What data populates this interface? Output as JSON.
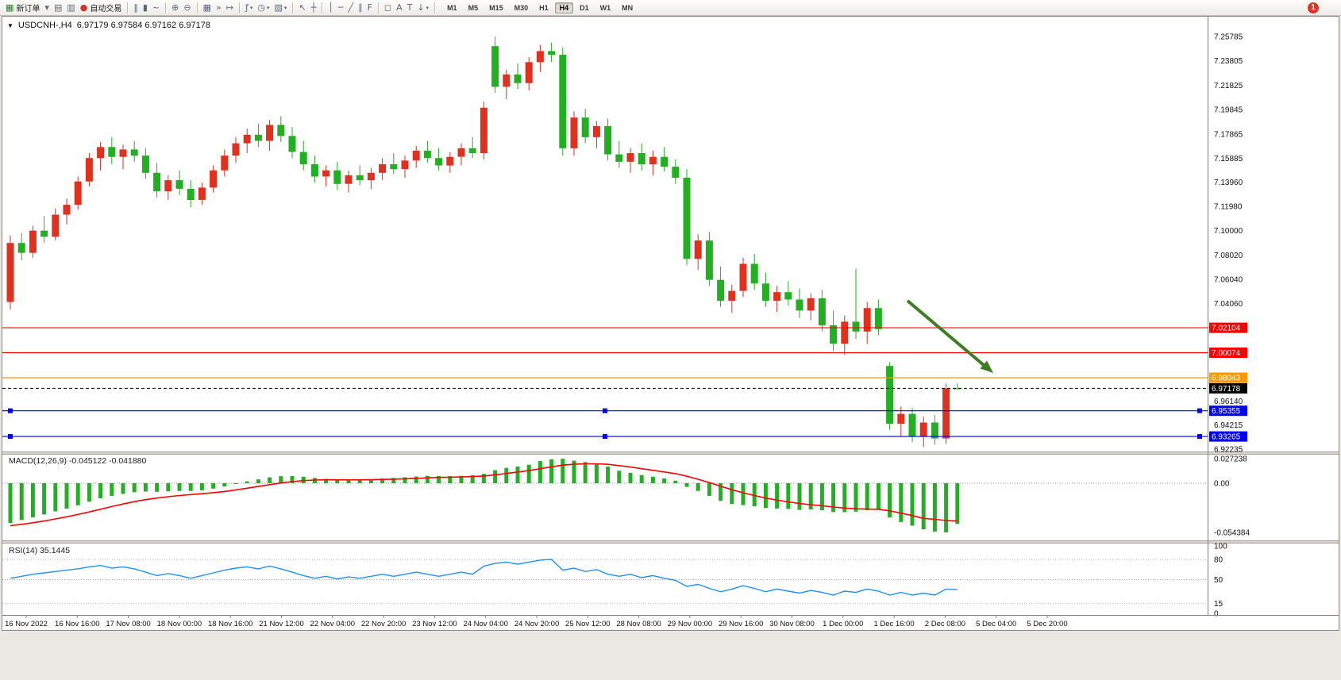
{
  "toolbar": {
    "dropdown_glyph": "▾",
    "notification_badge": "1",
    "timeframes": [
      "M1",
      "M5",
      "M15",
      "M30",
      "H1",
      "H4",
      "D1",
      "W1",
      "MN"
    ],
    "active_timeframe": "H4",
    "groups": [
      {
        "items": [
          {
            "name": "new-order-button",
            "icon": "new-order-icon",
            "glyph": "▦",
            "label": "新订单",
            "color": "#2e7d32"
          },
          {
            "name": "charts-dropdown-button",
            "icon": "chevron-down-icon",
            "glyph": "▾"
          },
          {
            "name": "profiles-button",
            "icon": "profiles-icon",
            "glyph": "▤"
          },
          {
            "name": "market-watch-button",
            "icon": "market-watch-icon",
            "glyph": "▥"
          },
          {
            "name": "auto-trading-button",
            "icon": "auto-trading-icon",
            "glyph": "●",
            "label": "自动交易",
            "color": "#d3342c"
          }
        ]
      },
      {
        "items": [
          {
            "name": "bar-chart-button",
            "icon": "bar-chart-icon",
            "glyph": "‖"
          },
          {
            "name": "candlestick-chart-button",
            "icon": "candlestick-chart-icon",
            "glyph": "▮"
          },
          {
            "name": "line-chart-button",
            "icon": "line-chart-icon",
            "glyph": "~"
          }
        ]
      },
      {
        "items": [
          {
            "name": "zoom-in-button",
            "icon": "zoom-in-icon",
            "glyph": "⊕"
          },
          {
            "name": "zoom-out-button",
            "icon": "zoom-out-icon",
            "glyph": "⊖"
          }
        ]
      },
      {
        "items": [
          {
            "name": "tile-windows-button",
            "icon": "tile-windows-icon",
            "glyph": "▦"
          },
          {
            "name": "auto-scroll-button",
            "icon": "auto-scroll-icon",
            "glyph": "»"
          },
          {
            "name": "chart-shift-button",
            "icon": "chart-shift-icon",
            "glyph": "↦"
          }
        ]
      },
      {
        "items": [
          {
            "name": "indicators-button",
            "icon": "indicators-icon",
            "glyph": "ƒ",
            "dropdown": true
          },
          {
            "name": "periods-button",
            "icon": "clock-icon",
            "glyph": "◷",
            "dropdown": true
          },
          {
            "name": "templates-button",
            "icon": "templates-icon",
            "glyph": "▨",
            "dropdown": true
          }
        ]
      },
      {
        "items": [
          {
            "name": "cursor-button",
            "icon": "cursor-icon",
            "glyph": "↖"
          },
          {
            "name": "crosshair-button",
            "icon": "crosshair-icon",
            "glyph": "┼"
          }
        ]
      },
      {
        "items": [
          {
            "name": "vertical-line-button",
            "icon": "vertical-line-icon",
            "glyph": "│"
          },
          {
            "name": "horizontal-line-button",
            "icon": "horizontal-line-icon",
            "glyph": "─"
          },
          {
            "name": "trendline-button",
            "icon": "trendline-icon",
            "glyph": "╱"
          },
          {
            "name": "channel-button",
            "icon": "channel-icon",
            "glyph": "∥"
          },
          {
            "name": "fibonacci-button",
            "icon": "fibonacci-icon",
            "glyph": "F"
          }
        ]
      },
      {
        "items": [
          {
            "name": "shapes-button",
            "icon": "shapes-icon",
            "glyph": "◻"
          },
          {
            "name": "text-button",
            "icon": "text-icon",
            "glyph": "A"
          },
          {
            "name": "text-label-button",
            "icon": "text-label-icon",
            "glyph": "T"
          },
          {
            "name": "arrow-objects-button",
            "icon": "arrow-objects-icon",
            "glyph": "↓",
            "dropdown": true
          }
        ]
      }
    ]
  },
  "chart": {
    "expander_glyph": "▼",
    "title": "USDCNH-,H4",
    "quote_line": "6.97179 6.97584 6.97162 6.97178"
  },
  "chart_data": {
    "type": "candlestick",
    "symbol": "USDCNH-",
    "timeframe": "H4",
    "quote": {
      "open": "6.97179",
      "high": "6.97584",
      "low": "6.97162",
      "close": "6.97178"
    },
    "up_color": "#e0301e",
    "down_color": "#22b022",
    "y_ticks": [
      "7.25785",
      "7.23805",
      "7.21825",
      "7.19845",
      "7.17865",
      "7.15885",
      "7.13960",
      "7.11980",
      "7.10000",
      "7.08020",
      "7.06040",
      "7.04060",
      "6.96140",
      "6.94215",
      "6.92235"
    ],
    "x_labels": [
      "16 Nov 2022",
      "16 Nov 16:00",
      "17 Nov 08:00",
      "18 Nov 00:00",
      "18 Nov 16:00",
      "21 Nov 12:00",
      "22 Nov 04:00",
      "22 Nov 20:00",
      "23 Nov 12:00",
      "24 Nov 04:00",
      "24 Nov 20:00",
      "25 Nov 12:00",
      "28 Nov 08:00",
      "29 Nov 00:00",
      "29 Nov 16:00",
      "30 Nov 08:00",
      "1 Dec 00:00",
      "1 Dec 16:00",
      "2 Dec 08:00",
      "5 Dec 04:00",
      "5 Dec 20:00"
    ],
    "hlines": [
      {
        "price": 7.02104,
        "label": "7.02104",
        "color": "#ff0000",
        "selected": false
      },
      {
        "price": 7.00074,
        "label": "7.00074",
        "color": "#ff0000",
        "selected": false
      },
      {
        "price": 6.98043,
        "label": "6.98043",
        "color": "#ff9900",
        "selected": false
      },
      {
        "price": 6.95355,
        "label": "6.95355",
        "color": "#0000ff",
        "selected": true
      },
      {
        "price": 6.93265,
        "label": "6.93265",
        "color": "#0000ff",
        "selected": true
      }
    ],
    "current_price": {
      "value": 6.97178,
      "label": "6.97178",
      "color": "#000000"
    },
    "arrow": {
      "color": "#3f7d22"
    },
    "candles": [
      [
        7.042,
        7.096,
        7.036,
        7.09
      ],
      [
        7.09,
        7.098,
        7.076,
        7.082
      ],
      [
        7.082,
        7.104,
        7.078,
        7.1
      ],
      [
        7.1,
        7.112,
        7.09,
        7.095
      ],
      [
        7.095,
        7.118,
        7.092,
        7.113
      ],
      [
        7.113,
        7.126,
        7.105,
        7.121
      ],
      [
        7.121,
        7.144,
        7.117,
        7.14
      ],
      [
        7.14,
        7.163,
        7.136,
        7.159
      ],
      [
        7.159,
        7.172,
        7.149,
        7.168
      ],
      [
        7.168,
        7.176,
        7.154,
        7.16
      ],
      [
        7.16,
        7.17,
        7.15,
        7.166
      ],
      [
        7.166,
        7.173,
        7.156,
        7.161
      ],
      [
        7.161,
        7.167,
        7.142,
        7.147
      ],
      [
        7.147,
        7.155,
        7.127,
        7.132
      ],
      [
        7.132,
        7.145,
        7.125,
        7.141
      ],
      [
        7.141,
        7.149,
        7.129,
        7.134
      ],
      [
        7.134,
        7.141,
        7.119,
        7.125
      ],
      [
        7.125,
        7.139,
        7.121,
        7.135
      ],
      [
        7.135,
        7.153,
        7.131,
        7.149
      ],
      [
        7.149,
        7.166,
        7.144,
        7.161
      ],
      [
        7.161,
        7.176,
        7.155,
        7.171
      ],
      [
        7.171,
        7.183,
        7.163,
        7.178
      ],
      [
        7.178,
        7.187,
        7.168,
        7.173
      ],
      [
        7.173,
        7.19,
        7.165,
        7.186
      ],
      [
        7.186,
        7.193,
        7.172,
        7.177
      ],
      [
        7.177,
        7.184,
        7.159,
        7.164
      ],
      [
        7.164,
        7.173,
        7.149,
        7.154
      ],
      [
        7.154,
        7.161,
        7.139,
        7.144
      ],
      [
        7.144,
        7.153,
        7.136,
        7.149
      ],
      [
        7.149,
        7.156,
        7.133,
        7.138
      ],
      [
        7.138,
        7.149,
        7.131,
        7.145
      ],
      [
        7.145,
        7.153,
        7.137,
        7.141
      ],
      [
        7.141,
        7.151,
        7.134,
        7.147
      ],
      [
        7.147,
        7.159,
        7.141,
        7.154
      ],
      [
        7.154,
        7.163,
        7.146,
        7.15
      ],
      [
        7.15,
        7.161,
        7.143,
        7.157
      ],
      [
        7.157,
        7.169,
        7.151,
        7.165
      ],
      [
        7.165,
        7.173,
        7.155,
        7.159
      ],
      [
        7.159,
        7.167,
        7.149,
        7.153
      ],
      [
        7.153,
        7.164,
        7.147,
        7.16
      ],
      [
        7.16,
        7.171,
        7.153,
        7.167
      ],
      [
        7.167,
        7.176,
        7.159,
        7.163
      ],
      [
        7.163,
        7.205,
        7.158,
        7.2
      ],
      [
        7.25,
        7.2578,
        7.212,
        7.217
      ],
      [
        7.217,
        7.231,
        7.207,
        7.227
      ],
      [
        7.227,
        7.236,
        7.215,
        7.22
      ],
      [
        7.22,
        7.241,
        7.214,
        7.237
      ],
      [
        7.237,
        7.251,
        7.229,
        7.246
      ],
      [
        7.246,
        7.253,
        7.237,
        7.243
      ],
      [
        7.243,
        7.249,
        7.161,
        7.167
      ],
      [
        7.167,
        7.197,
        7.161,
        7.192
      ],
      [
        7.192,
        7.199,
        7.171,
        7.176
      ],
      [
        7.176,
        7.189,
        7.167,
        7.185
      ],
      [
        7.185,
        7.191,
        7.157,
        7.162
      ],
      [
        7.162,
        7.173,
        7.151,
        7.156
      ],
      [
        7.156,
        7.167,
        7.147,
        7.163
      ],
      [
        7.163,
        7.171,
        7.149,
        7.154
      ],
      [
        7.154,
        7.165,
        7.145,
        7.16
      ],
      [
        7.16,
        7.168,
        7.148,
        7.152
      ],
      [
        7.152,
        7.158,
        7.138,
        7.143
      ],
      [
        7.143,
        7.15,
        7.072,
        7.077
      ],
      [
        7.077,
        7.097,
        7.068,
        7.092
      ],
      [
        7.092,
        7.099,
        7.055,
        7.06
      ],
      [
        7.06,
        7.071,
        7.038,
        7.043
      ],
      [
        7.043,
        7.056,
        7.033,
        7.051
      ],
      [
        7.051,
        7.078,
        7.046,
        7.073
      ],
      [
        7.073,
        7.081,
        7.052,
        7.057
      ],
      [
        7.057,
        7.066,
        7.038,
        7.043
      ],
      [
        7.043,
        7.055,
        7.034,
        7.05
      ],
      [
        7.05,
        7.059,
        7.039,
        7.044
      ],
      [
        7.044,
        7.053,
        7.029,
        7.035
      ],
      [
        7.035,
        7.049,
        7.027,
        7.045
      ],
      [
        7.045,
        7.052,
        7.018,
        7.023
      ],
      [
        7.023,
        7.035,
        7.002,
        7.008
      ],
      [
        7.008,
        7.031,
        6.999,
        7.026
      ],
      [
        7.026,
        7.069,
        7.012,
        7.018
      ],
      [
        7.018,
        7.042,
        7.008,
        7.037
      ],
      [
        7.037,
        7.044,
        7.015,
        7.02
      ],
      [
        6.99,
        6.993,
        6.938,
        6.943
      ],
      [
        6.943,
        6.957,
        6.933,
        6.951
      ],
      [
        6.951,
        6.956,
        6.928,
        6.933
      ],
      [
        6.933,
        6.949,
        6.924,
        6.944
      ],
      [
        6.944,
        6.95,
        6.926,
        6.931
      ],
      [
        6.931,
        6.9758,
        6.9267,
        6.9718
      ],
      [
        6.97179,
        6.97584,
        6.97162,
        6.97178
      ]
    ],
    "indicators": [
      {
        "name": "MACD",
        "label": "MACD(12,26,9)",
        "values_label": "-0.045122 -0.041880",
        "hist_color": "#22b022",
        "signal_color": "#ff0000",
        "y_ticks": [
          "0.027238",
          "0.00",
          "-0.054384"
        ],
        "histogram": [
          -0.044,
          -0.0408,
          -0.0378,
          -0.0346,
          -0.0312,
          -0.028,
          -0.0245,
          -0.0205,
          -0.0168,
          -0.014,
          -0.0118,
          -0.01,
          -0.0092,
          -0.0095,
          -0.009,
          -0.0085,
          -0.0085,
          -0.0078,
          -0.006,
          -0.0035,
          -0.0008,
          0.002,
          0.0042,
          0.0065,
          0.0078,
          0.008,
          0.0072,
          0.0058,
          0.0048,
          0.004,
          0.0038,
          0.004,
          0.0045,
          0.0052,
          0.0058,
          0.0065,
          0.0075,
          0.0082,
          0.008,
          0.0078,
          0.0082,
          0.0088,
          0.0105,
          0.0145,
          0.017,
          0.0185,
          0.0205,
          0.0245,
          0.0265,
          0.0272,
          0.025,
          0.0235,
          0.0215,
          0.0185,
          0.0138,
          0.0115,
          0.009,
          0.0072,
          0.0052,
          0.0028,
          -0.004,
          -0.0085,
          -0.014,
          -0.0195,
          -0.023,
          -0.0242,
          -0.0255,
          -0.0275,
          -0.028,
          -0.0285,
          -0.0295,
          -0.029,
          -0.03,
          -0.032,
          -0.032,
          -0.0315,
          -0.03,
          -0.0295,
          -0.038,
          -0.043,
          -0.047,
          -0.051,
          -0.0535,
          -0.0544,
          -0.045122
        ],
        "signal": [
          -0.047,
          -0.0455,
          -0.0438,
          -0.0418,
          -0.0396,
          -0.0372,
          -0.0346,
          -0.0318,
          -0.0288,
          -0.0258,
          -0.023,
          -0.0204,
          -0.0182,
          -0.0164,
          -0.0149,
          -0.0136,
          -0.0126,
          -0.0116,
          -0.0105,
          -0.0091,
          -0.0074,
          -0.0055,
          -0.0036,
          -0.0016,
          0.0003,
          0.0018,
          0.0029,
          0.0035,
          0.0038,
          0.0038,
          0.0038,
          0.0038,
          0.0039,
          0.0042,
          0.0045,
          0.0049,
          0.0054,
          0.006,
          0.0064,
          0.0067,
          0.007,
          0.0074,
          0.008,
          0.0093,
          0.0108,
          0.0124,
          0.014,
          0.0161,
          0.0182,
          0.02,
          0.021,
          0.0215,
          0.0215,
          0.0209,
          0.0195,
          0.0179,
          0.0161,
          0.0143,
          0.0125,
          0.0106,
          0.0077,
          0.0044,
          0.0007,
          -0.0033,
          -0.0072,
          -0.0106,
          -0.0136,
          -0.0164,
          -0.0187,
          -0.0207,
          -0.0225,
          -0.0238,
          -0.025,
          -0.0264,
          -0.0275,
          -0.0283,
          -0.0287,
          -0.0288,
          -0.0306,
          -0.0331,
          -0.0359,
          -0.0389,
          -0.04,
          -0.0413,
          -0.04188
        ]
      },
      {
        "name": "RSI",
        "label": "RSI(14)",
        "value_label": "35.1445",
        "line_color": "#1e90ff",
        "levels": [
          80,
          50,
          15
        ],
        "y_ticks": [
          "100",
          "80",
          "50",
          "15",
          "0"
        ],
        "values": [
          52,
          55,
          58,
          60,
          62,
          64,
          66,
          69,
          71,
          67,
          69,
          66,
          61,
          56,
          59,
          56,
          52,
          56,
          60,
          64,
          67,
          69,
          66,
          70,
          66,
          61,
          56,
          52,
          55,
          51,
          54,
          52,
          55,
          58,
          55,
          58,
          61,
          58,
          55,
          58,
          61,
          58,
          70,
          74,
          76,
          73,
          76,
          79,
          80,
          64,
          67,
          62,
          65,
          58,
          55,
          58,
          53,
          56,
          52,
          49,
          40,
          43,
          37,
          32,
          36,
          41,
          37,
          32,
          36,
          33,
          30,
          34,
          31,
          27,
          33,
          31,
          36,
          33,
          27,
          31,
          27,
          30,
          27,
          36,
          35.1445
        ]
      }
    ]
  }
}
